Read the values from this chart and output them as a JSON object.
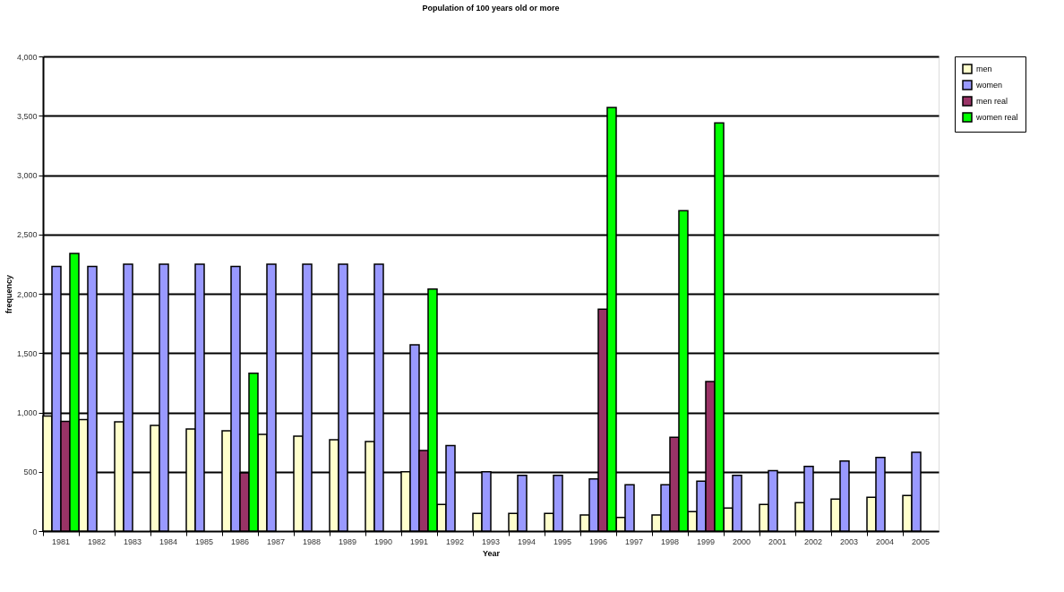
{
  "chart_data": {
    "type": "bar",
    "title": "Population of 100 years old or more",
    "xlabel": "Year",
    "ylabel": "frequency",
    "categories": [
      "1981",
      "1982",
      "1983",
      "1984",
      "1985",
      "1986",
      "1987",
      "1988",
      "1989",
      "1990",
      "1991",
      "1992",
      "1993",
      "1994",
      "1995",
      "1996",
      "1997",
      "1998",
      "1999",
      "2000",
      "2001",
      "2002",
      "2003",
      "2004",
      "2005"
    ],
    "series": [
      {
        "name": "men",
        "color": "#ffffcc",
        "values": [
          970,
          940,
          920,
          890,
          860,
          845,
          815,
          800,
          770,
          755,
          500,
          225,
          150,
          150,
          150,
          135,
          115,
          135,
          165,
          195,
          225,
          240,
          270,
          285,
          300
        ]
      },
      {
        "name": "women",
        "color": "#9999ff",
        "values": [
          2230,
          2230,
          2250,
          2250,
          2250,
          2230,
          2250,
          2250,
          2250,
          2250,
          1570,
          720,
          500,
          470,
          470,
          440,
          390,
          390,
          420,
          470,
          510,
          545,
          590,
          620,
          665
        ]
      },
      {
        "name": "men real",
        "color": "#993366",
        "values": [
          925,
          null,
          null,
          null,
          null,
          490,
          null,
          null,
          null,
          null,
          680,
          null,
          null,
          null,
          null,
          1870,
          null,
          790,
          1260,
          null,
          null,
          null,
          null,
          null,
          null
        ]
      },
      {
        "name": "women real",
        "color": "#00ff00",
        "values": [
          2340,
          null,
          null,
          null,
          null,
          1330,
          null,
          null,
          null,
          null,
          2040,
          null,
          null,
          null,
          null,
          3570,
          null,
          2700,
          3440,
          null,
          null,
          null,
          null,
          null,
          null
        ]
      }
    ],
    "ylim": [
      0,
      4000
    ],
    "yticks": [
      0,
      500,
      {
        "value": 1000,
        "label": "1,000"
      },
      {
        "value": 1500,
        "label": "1,500"
      },
      {
        "value": 2000,
        "label": "2,000"
      },
      {
        "value": 2500,
        "label": "2,500"
      },
      {
        "value": 3000,
        "label": "3,000"
      },
      {
        "value": 3500,
        "label": "3,500"
      },
      {
        "value": 4000,
        "label": "4,000"
      }
    ],
    "grid": "y",
    "legend": "right"
  }
}
